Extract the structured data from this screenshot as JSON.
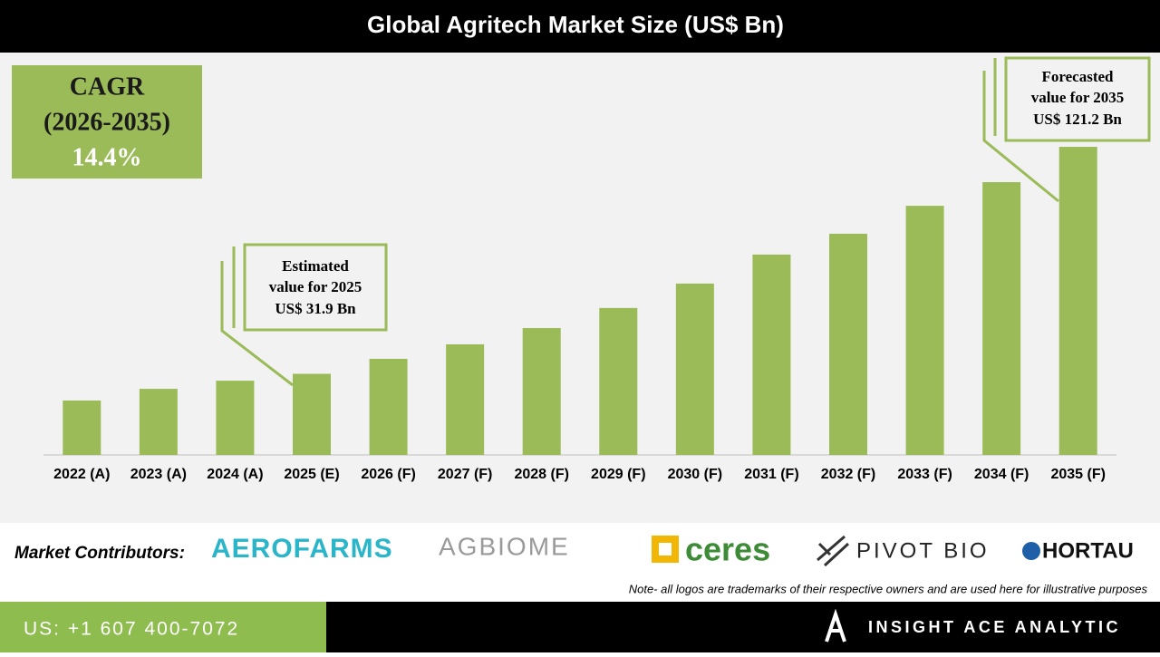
{
  "chart_data": {
    "type": "bar",
    "title": "Global Agritech Market Size (US$ Bn)",
    "categories": [
      "2022 (A)",
      "2023 (A)",
      "2024 (A)",
      "2025 (E)",
      "2026 (F)",
      "2027 (F)",
      "2028 (F)",
      "2029 (F)",
      "2030 (F)",
      "2031 (F)",
      "2032 (F)",
      "2033 (F)",
      "2034 (F)",
      "2035 (F)"
    ],
    "values": [
      21.4,
      26.0,
      29.2,
      31.9,
      37.8,
      43.5,
      49.9,
      57.8,
      67.4,
      78.8,
      87.0,
      98.0,
      107.3,
      121.2
    ],
    "color": "#9bbb59",
    "annotations": [
      {
        "lines": [
          "Estimated",
          "value for 2025",
          "US$ 31.9 Bn"
        ]
      },
      {
        "lines": [
          "Forecasted",
          "value for 2035",
          "US$ 121.2 Bn"
        ]
      }
    ]
  },
  "cagr": {
    "label": "CAGR",
    "period": "(2026-2035)",
    "value": "14.4%"
  },
  "contributors": {
    "label": "Market Contributors:",
    "logos": [
      "AEROFARMS",
      "AGBIOME",
      "ceres",
      "PIVOT BIO",
      "HORTAU"
    ]
  },
  "note": "Note- all logos are trademarks of their respective owners and are used here for illustrative purposes",
  "footer": {
    "phone": "US: +1 607 400-7072",
    "brand": "INSIGHT ACE ANALYTIC"
  }
}
